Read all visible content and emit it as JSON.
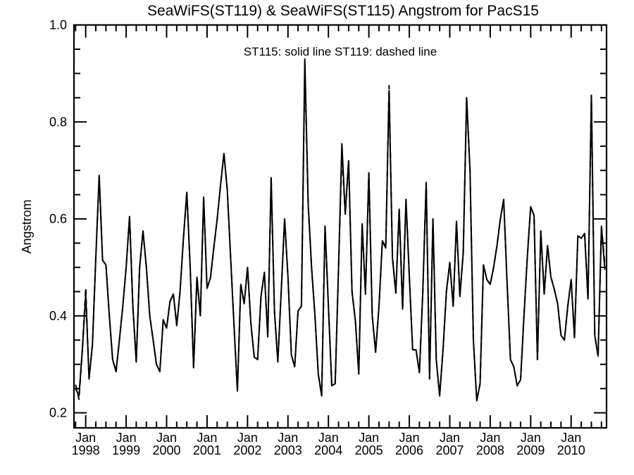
{
  "title": "SeaWiFS(ST119) & SeaWiFS(ST115)  Angstrom for PacS15",
  "legend_note": "ST115: solid line   ST119: dashed line",
  "ylabel": "Angstrom",
  "x_month_label": "Jan",
  "colors": {
    "line": "#000000",
    "background": "#ffffff"
  },
  "chart_data": {
    "type": "line",
    "title": "SeaWiFS(ST119) & SeaWiFS(ST115)  Angstrom for PacS15",
    "annotation": "ST115: solid line   ST119: dashed line",
    "xlabel": "",
    "ylabel": "Angstrom",
    "xlim": [
      1997.71,
      2010.875
    ],
    "ylim": [
      0.169,
      1.0
    ],
    "y_major_ticks": [
      0.2,
      0.4,
      0.6,
      0.8,
      1.0
    ],
    "y_tick_labels": [
      "0.2",
      "0.4",
      "0.6",
      "0.8",
      "1.0"
    ],
    "y_minor_step": 0.05,
    "x_major_years": [
      1998,
      1999,
      2000,
      2001,
      2002,
      2003,
      2004,
      2005,
      2006,
      2007,
      2008,
      2009,
      2010
    ],
    "x_minor_step": 0.25,
    "grid": false,
    "legend_position": "top-center-annotation",
    "start_decimal_year": 1997.75,
    "points_are_monthly": true,
    "series": [
      {
        "name": "ST115",
        "style": "solid",
        "values": [
          0.25,
          0.235,
          0.33,
          0.445,
          0.27,
          0.34,
          0.52,
          0.69,
          0.515,
          0.505,
          0.4,
          0.31,
          0.285,
          0.35,
          0.42,
          0.5,
          0.605,
          0.42,
          0.305,
          0.5,
          0.575,
          0.5,
          0.4,
          0.35,
          0.3,
          0.285,
          0.392,
          0.375,
          0.43,
          0.445,
          0.38,
          0.45,
          0.56,
          0.655,
          0.5,
          0.293,
          0.48,
          0.4,
          0.645,
          0.457,
          0.478,
          0.54,
          0.6,
          0.67,
          0.735,
          0.66,
          0.52,
          0.38,
          0.245,
          0.465,
          0.425,
          0.5,
          0.385,
          0.315,
          0.31,
          0.44,
          0.49,
          0.357,
          0.685,
          0.41,
          0.305,
          0.45,
          0.6,
          0.48,
          0.32,
          0.295,
          0.41,
          0.42,
          0.93,
          0.63,
          0.5,
          0.4,
          0.28,
          0.235,
          0.585,
          0.42,
          0.256,
          0.26,
          0.5,
          0.755,
          0.61,
          0.72,
          0.45,
          0.39,
          0.28,
          0.59,
          0.445,
          0.695,
          0.4,
          0.325,
          0.42,
          0.555,
          0.54,
          0.865,
          0.52,
          0.447,
          0.62,
          0.414,
          0.64,
          0.48,
          0.33,
          0.33,
          0.283,
          0.45,
          0.675,
          0.27,
          0.6,
          0.31,
          0.235,
          0.33,
          0.45,
          0.51,
          0.42,
          0.595,
          0.44,
          0.53,
          0.85,
          0.7,
          0.35,
          0.225,
          0.26,
          0.505,
          0.475,
          0.465,
          0.5,
          0.545,
          0.6,
          0.64,
          0.47,
          0.31,
          0.295,
          0.256,
          0.268,
          0.4,
          0.52,
          0.625,
          0.607,
          0.31,
          0.575,
          0.445,
          0.545,
          0.48,
          0.455,
          0.425,
          0.36,
          0.35,
          0.42,
          0.475,
          0.355,
          0.565,
          0.56,
          0.57,
          0.435,
          0.855,
          0.36,
          0.317,
          0.585,
          0.495
        ]
      },
      {
        "name": "ST119",
        "style": "dashed",
        "values": [
          0.258,
          0.228,
          0.33,
          0.458,
          0.27,
          0.34,
          0.52,
          0.69,
          0.515,
          0.505,
          0.4,
          0.31,
          0.285,
          0.35,
          0.42,
          0.5,
          0.605,
          0.42,
          0.305,
          0.5,
          0.575,
          0.5,
          0.4,
          0.35,
          0.3,
          0.285,
          0.392,
          0.375,
          0.43,
          0.445,
          0.38,
          0.45,
          0.56,
          0.655,
          0.5,
          0.293,
          0.48,
          0.4,
          0.645,
          0.457,
          0.478,
          0.54,
          0.6,
          0.67,
          0.735,
          0.66,
          0.52,
          0.38,
          0.245,
          0.465,
          0.425,
          0.5,
          0.385,
          0.315,
          0.31,
          0.44,
          0.49,
          0.357,
          0.685,
          0.41,
          0.305,
          0.45,
          0.6,
          0.48,
          0.32,
          0.295,
          0.41,
          0.42,
          0.915,
          0.63,
          0.5,
          0.4,
          0.28,
          0.235,
          0.585,
          0.42,
          0.256,
          0.26,
          0.5,
          0.735,
          0.61,
          0.72,
          0.45,
          0.39,
          0.28,
          0.59,
          0.445,
          0.695,
          0.4,
          0.325,
          0.42,
          0.555,
          0.54,
          0.875,
          0.52,
          0.447,
          0.62,
          0.414,
          0.64,
          0.48,
          0.33,
          0.33,
          0.283,
          0.45,
          0.675,
          0.27,
          0.6,
          0.31,
          0.235,
          0.33,
          0.45,
          0.51,
          0.42,
          0.595,
          0.44,
          0.53,
          0.85,
          0.7,
          0.35,
          0.225,
          0.26,
          0.505,
          0.475,
          0.465,
          0.5,
          0.545,
          0.6,
          0.64,
          0.47,
          0.31,
          0.295,
          0.256,
          0.268,
          0.4,
          0.52,
          0.625,
          0.607,
          0.31,
          0.575,
          0.445,
          0.545,
          0.48,
          0.455,
          0.425,
          0.36,
          0.35,
          0.42,
          0.475,
          0.355,
          0.565,
          0.56,
          0.57,
          0.435,
          0.855,
          0.36,
          0.317,
          0.585,
          0.505
        ]
      }
    ]
  }
}
